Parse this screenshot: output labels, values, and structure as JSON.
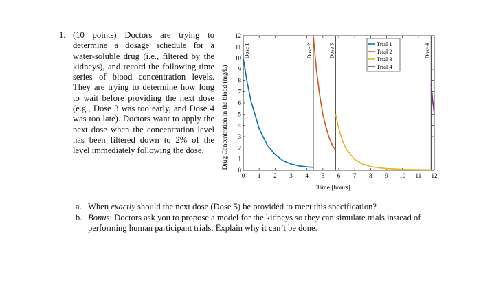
{
  "problem": {
    "number": "1.",
    "text": "(10 points) Doctors are trying to determine a dosage schedule for a water-soluble drug (i.e., filtered by the kidneys), and record the following time series of blood concentration levels. They are trying to determine how long to wait before providing the next dose (e.g., Dose 3 was too early, and Dose 4 was too late). Doctors want to apply the next dose when the concentration level has been filtered down to 2% of the level immediately following the dose."
  },
  "questions": [
    {
      "letter": "a.",
      "pre": "When ",
      "emph": "exactly",
      "post": " should the next dose (Dose 5) be provided to meet this specification?"
    },
    {
      "letter": "b.",
      "pre": "",
      "emph": "Bonus",
      "post": ": Doctors ask you to propose a model for the kidneys so they can simulate trials instead of performing human participant trials. Explain why it can’t be done."
    }
  ],
  "chart_data": {
    "type": "line",
    "title": "",
    "xlabel": "Time [hours]",
    "ylabel": "Drug Concentration in the blood (mg/L)",
    "xlim": [
      0,
      12
    ],
    "ylim": [
      0,
      12
    ],
    "xticks": [
      0,
      1,
      2,
      3,
      4,
      5,
      6,
      7,
      8,
      9,
      10,
      11,
      12
    ],
    "yticks": [
      0,
      1,
      2,
      3,
      4,
      5,
      6,
      7,
      8,
      9,
      10,
      11,
      12
    ],
    "grid": false,
    "legend_position": "top-right",
    "dose_lines": [
      {
        "label": "Dose 1",
        "x": 0
      },
      {
        "label": "Dose 2",
        "x": 4.4
      },
      {
        "label": "Dose 3",
        "x": 5.8
      },
      {
        "label": "Dose 4",
        "x": 11.8
      }
    ],
    "series": [
      {
        "name": "Trial 1",
        "color": "#0072BD",
        "x": [
          0,
          0.25,
          0.5,
          1,
          1.5,
          2,
          2.5,
          3,
          3.5,
          4,
          4.4
        ],
        "y": [
          10,
          7.8,
          6.1,
          3.7,
          2.25,
          1.4,
          0.85,
          0.55,
          0.38,
          0.3,
          0.25
        ]
      },
      {
        "name": "Trial 2",
        "color": "#D95319",
        "x": [
          4.4,
          4.6,
          4.8,
          5.0,
          5.2,
          5.4,
          5.6,
          5.8
        ],
        "y": [
          12,
          8.9,
          6.7,
          5.0,
          3.8,
          2.9,
          2.2,
          1.8
        ]
      },
      {
        "name": "Trial 3",
        "color": "#EDB120",
        "x": [
          5.8,
          6.0,
          6.25,
          6.5,
          7,
          7.5,
          8,
          8.5,
          9,
          10,
          11,
          11.8
        ],
        "y": [
          5,
          3.7,
          2.55,
          1.8,
          0.95,
          0.55,
          0.33,
          0.22,
          0.15,
          0.08,
          0.05,
          0.04
        ]
      },
      {
        "name": "Trial 4",
        "color": "#7E2F8E",
        "x": [
          11.8,
          11.9,
          12.0
        ],
        "y": [
          7.7,
          6.2,
          5.0
        ]
      }
    ]
  }
}
